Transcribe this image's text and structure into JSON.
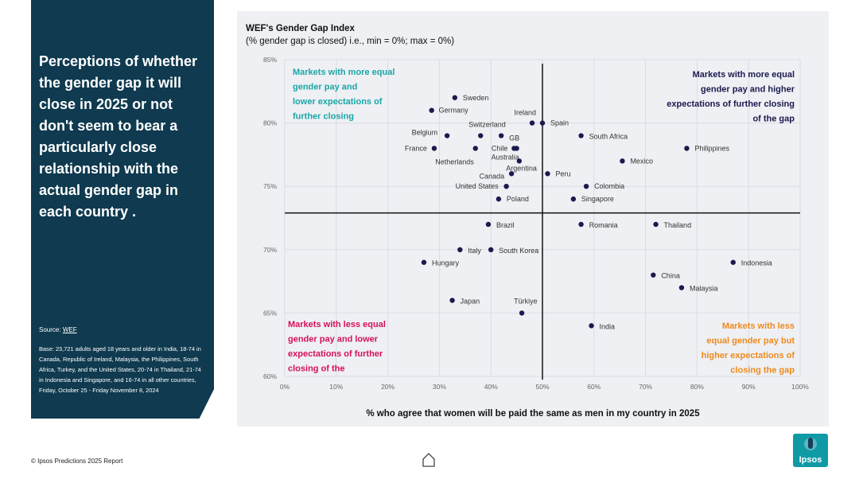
{
  "sidebar": {
    "headline": "Perceptions of whether the gender gap it will close in 2025 or not don't seem to bear a particularly close relationship with the actual gender gap in each country .",
    "source_label": "Source:",
    "source_link": "WEF",
    "base": "Base: 23,721 adults aged 18 years and older in India, 18-74 in Canada, Republic of Ireland, Malaysia, the Philippines, South Africa, Turkey, and the United States, 20-74 in Thailand, 21-74 in Indonesia and Singapore, and 16-74 in all other countries, Friday, October 25 - Friday November 8, 2024"
  },
  "footer": {
    "text": "© Ipsos Predictions 2025 Report"
  },
  "logo": {
    "text": "Ipsos",
    "color": "#0f9aa6"
  },
  "icons": {
    "home": "home-icon"
  },
  "chart_data": {
    "type": "scatter",
    "title": "WEF's Gender Gap Index",
    "subtitle": "(% gender gap is closed) i.e., min = 0%; max = 0%)",
    "xlabel": "% who agree that women will be paid the same as men in my country in 2025",
    "xlim": [
      0,
      100
    ],
    "ylim": [
      60,
      85
    ],
    "x_ticks": [
      "0%",
      "10%",
      "20%",
      "30%",
      "40%",
      "50%",
      "60%",
      "70%",
      "80%",
      "90%",
      "100%"
    ],
    "y_ticks": [
      "60%",
      "65%",
      "70%",
      "75%",
      "80%",
      "85%"
    ],
    "divider_x": 50,
    "divider_y": 72.9,
    "point_color": "#1a1a4e",
    "points": [
      {
        "label": "Sweden",
        "x": 33,
        "y": 82.0
      },
      {
        "label": "Germany",
        "x": 28.5,
        "y": 81.0
      },
      {
        "label": "Ireland",
        "x": 48,
        "y": 80.0
      },
      {
        "label": "Spain",
        "x": 50,
        "y": 80.0
      },
      {
        "label": "Belgium",
        "x": 31.5,
        "y": 79.0
      },
      {
        "label": "Switzerland",
        "x": 38,
        "y": 79.0
      },
      {
        "label": "GB",
        "x": 42,
        "y": 79.0
      },
      {
        "label": "France",
        "x": 29,
        "y": 78.0
      },
      {
        "label": "Netherlands",
        "x": 37,
        "y": 78.0
      },
      {
        "label": "Chile",
        "x": 44.5,
        "y": 78.0
      },
      {
        "label": "Australia",
        "x": 45,
        "y": 78.0
      },
      {
        "label": "Argentina",
        "x": 45.5,
        "y": 77.0
      },
      {
        "label": "Canada",
        "x": 44,
        "y": 76.0
      },
      {
        "label": "United States",
        "x": 43,
        "y": 75.0
      },
      {
        "label": "Poland",
        "x": 41.5,
        "y": 74.0
      },
      {
        "label": "South Africa",
        "x": 57.5,
        "y": 79.0
      },
      {
        "label": "Peru",
        "x": 51,
        "y": 76.0
      },
      {
        "label": "Colombia",
        "x": 58.5,
        "y": 75.0
      },
      {
        "label": "Singapore",
        "x": 56,
        "y": 74.0
      },
      {
        "label": "Mexico",
        "x": 65.5,
        "y": 77.0
      },
      {
        "label": "Philippines",
        "x": 78,
        "y": 78.0
      },
      {
        "label": "Brazil",
        "x": 39.5,
        "y": 72.0
      },
      {
        "label": "Italy",
        "x": 34,
        "y": 70.0
      },
      {
        "label": "South Korea",
        "x": 40,
        "y": 70.0
      },
      {
        "label": "Hungary",
        "x": 27,
        "y": 69.0
      },
      {
        "label": "Japan",
        "x": 32.5,
        "y": 66.0
      },
      {
        "label": "Türkiye",
        "x": 46,
        "y": 65.0
      },
      {
        "label": "Romania",
        "x": 57.5,
        "y": 72.0
      },
      {
        "label": "Thailand",
        "x": 72,
        "y": 72.0
      },
      {
        "label": "India",
        "x": 59.5,
        "y": 64.0
      },
      {
        "label": "China",
        "x": 71.5,
        "y": 68.0
      },
      {
        "label": "Malaysia",
        "x": 77,
        "y": 67.0
      },
      {
        "label": "Indonesia",
        "x": 87,
        "y": 69.0
      }
    ],
    "quadrants": [
      {
        "name": "top-left",
        "text": "Markets with more equal gender pay and lower expectations of further closing of the gap",
        "color": "#1aa6a6"
      },
      {
        "name": "top-right",
        "text": "Markets with more equal gender pay and higher expectations of further closing of the gap",
        "color": "#1a1a4e"
      },
      {
        "name": "bottom-left",
        "text": "Markets with less equal gender pay and lower expectations of further closing of the gap",
        "color": "#d6105c"
      },
      {
        "name": "bottom-right",
        "text": "Markets with less equal gender pay but higher expectations of closing the gap",
        "color": "#f08a1c"
      }
    ]
  }
}
